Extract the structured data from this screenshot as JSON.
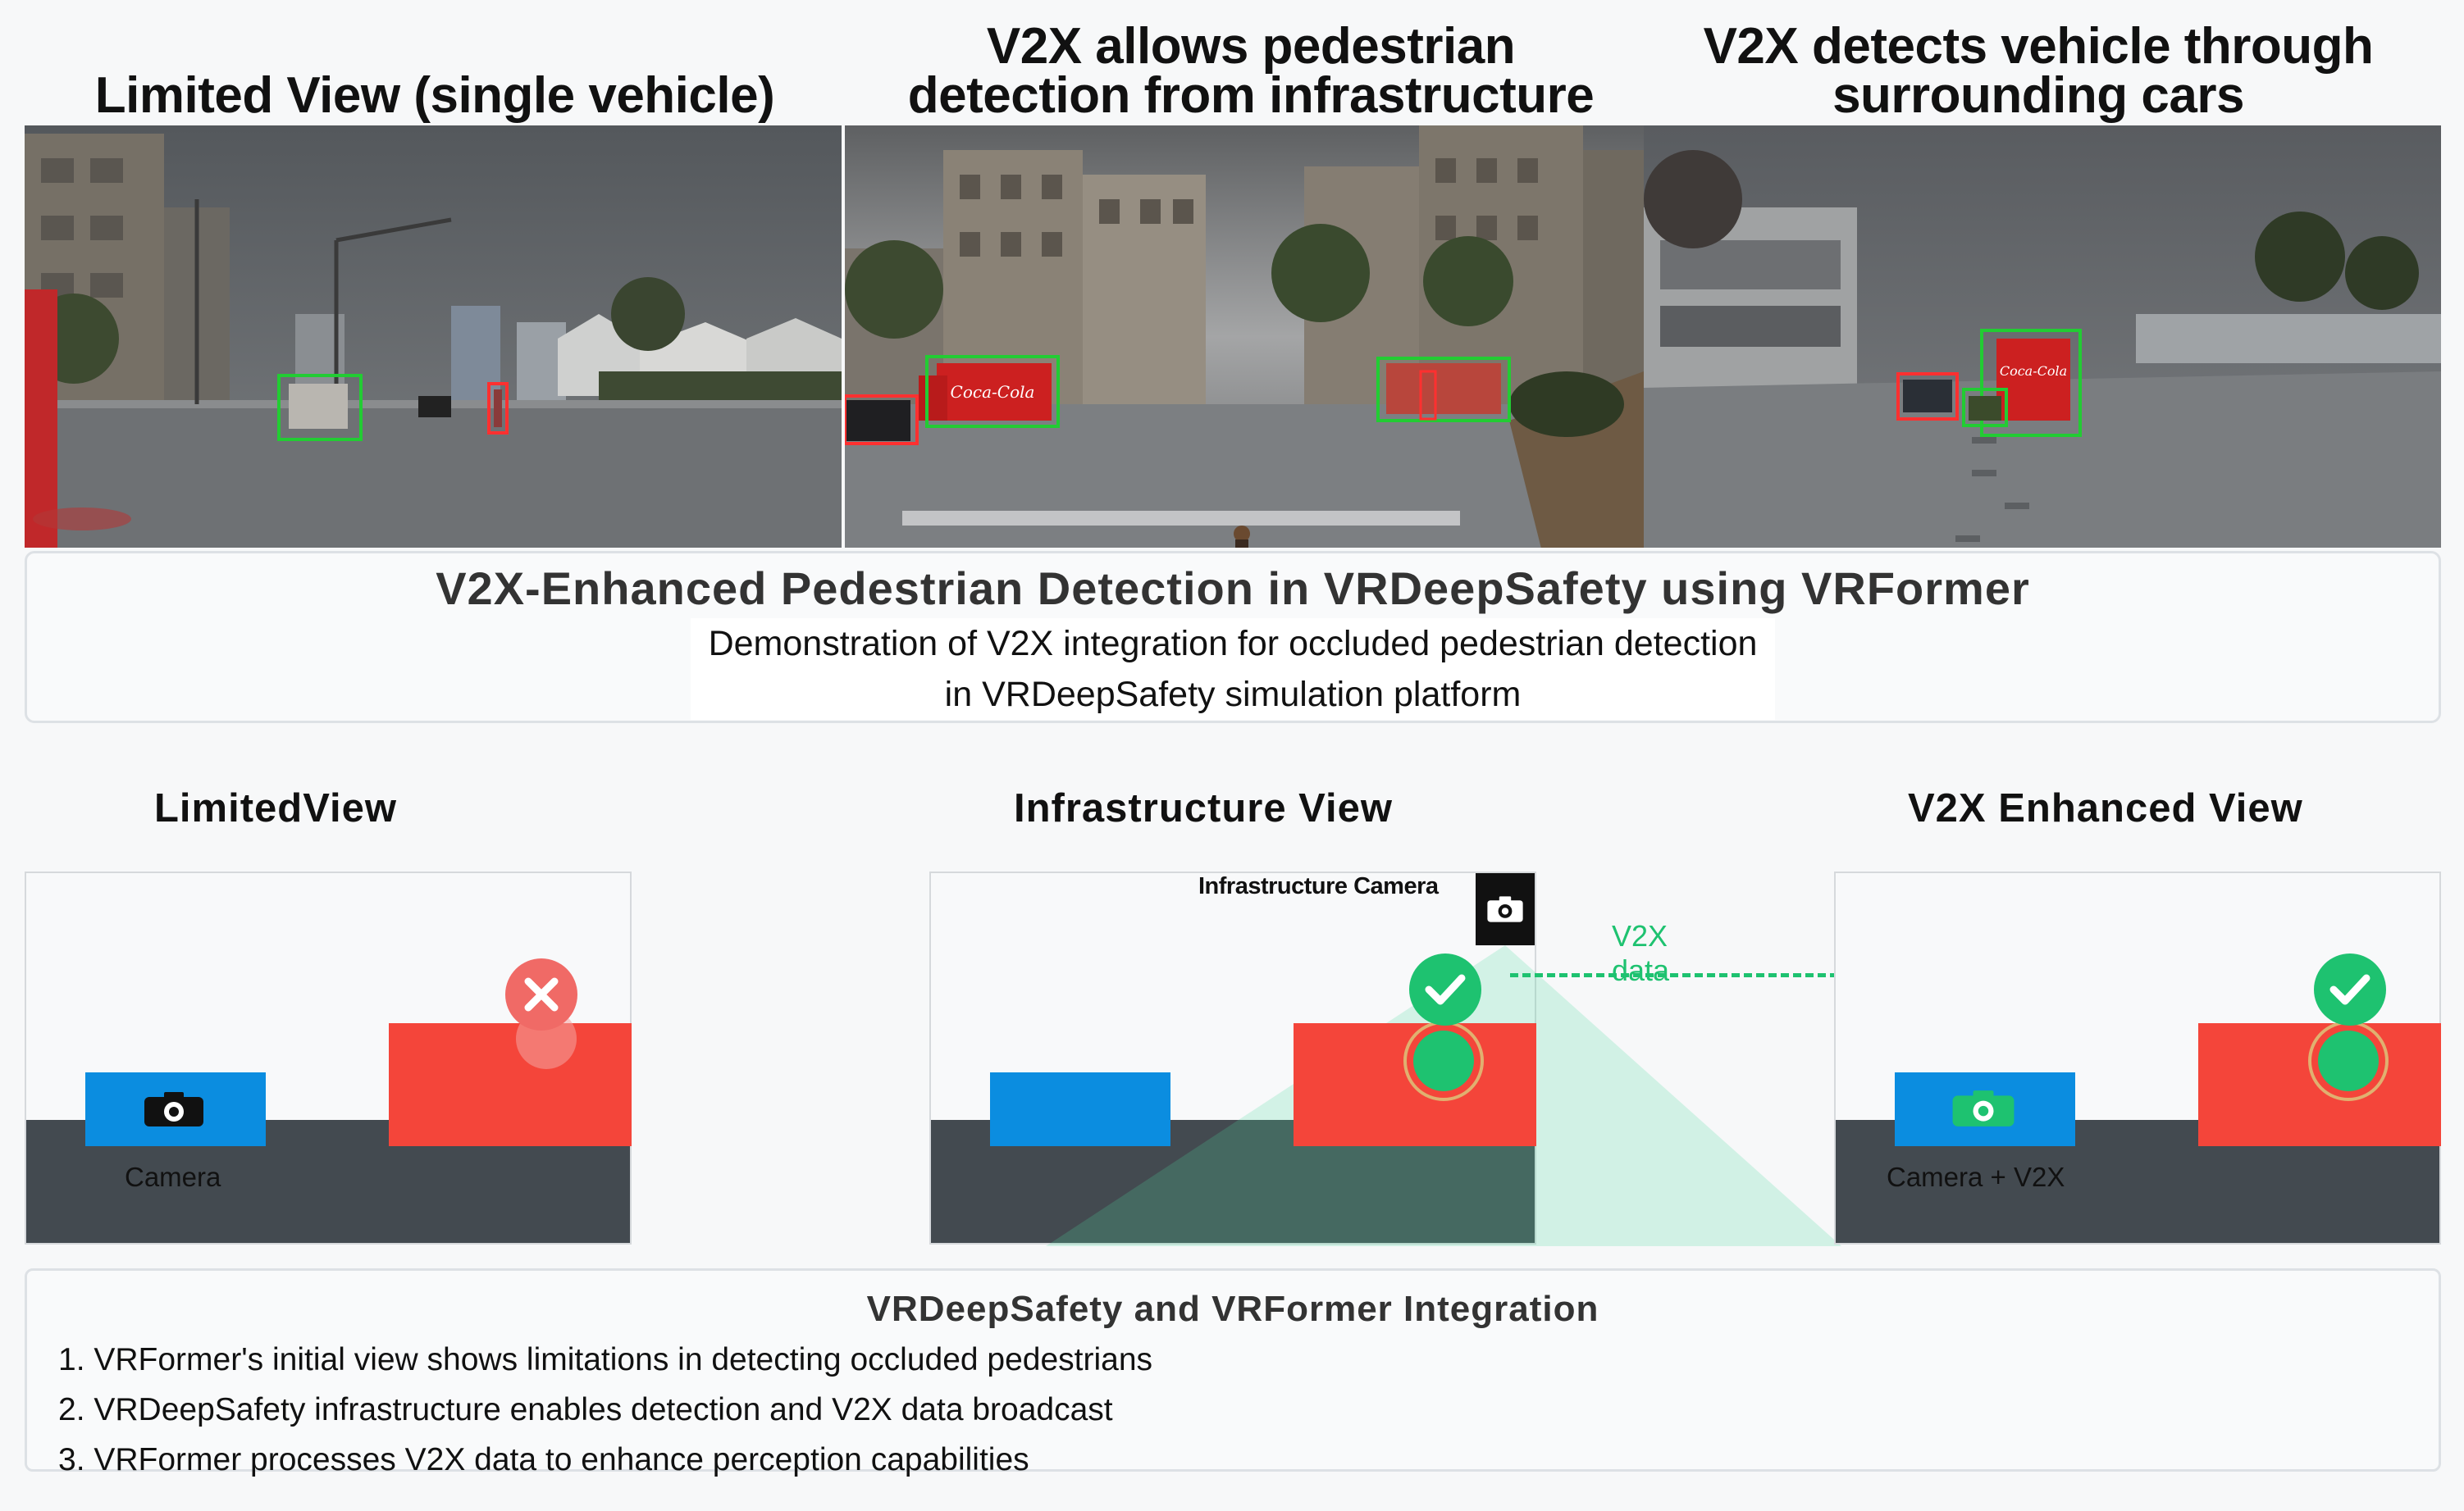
{
  "top_titles": {
    "limited": "Limited View (single vehicle)",
    "infra_line1": "V2X allows pedestrian",
    "infra_line2": "detection from infrastructure",
    "v2x_line1": "V2X detects vehicle through",
    "v2x_line2": "surrounding cars"
  },
  "title_card": {
    "title": "V2X-Enhanced Pedestrian Detection in VRDeepSafety using VRFormer",
    "subtitle_line1": "Demonstration of V2X integration for occluded pedestrian detection",
    "subtitle_line2": "in VRDeepSafety simulation platform"
  },
  "diagram": {
    "limited_label": "LimitedView",
    "infra_label": "Infrastructure View",
    "v2x_label": "V2X Enhanced View",
    "camera_label": "Camera",
    "infra_camera_label": "Infrastructure Camera",
    "v2x_data_label": "V2X data",
    "camera_v2x_label": "Camera + V2X"
  },
  "integration": {
    "heading": "VRDeepSafety and VRFormer Integration",
    "items": [
      "1. VRFormer's initial view shows limitations in detecting occluded pedestrians",
      "2. VRDeepSafety infrastructure enables detection and V2X data broadcast",
      "3. VRFormer processes V2X data to enhance perception capabilities"
    ]
  },
  "scene_text": {
    "brand": "Coca-Cola"
  },
  "colors": {
    "blue_car": "#0b8de0",
    "red_block": "#f4453a",
    "road": "#434a50",
    "green_ok": "#1ec270",
    "red_error": "#f06a66"
  },
  "icons": [
    "camera-icon",
    "check-icon",
    "close-icon"
  ]
}
